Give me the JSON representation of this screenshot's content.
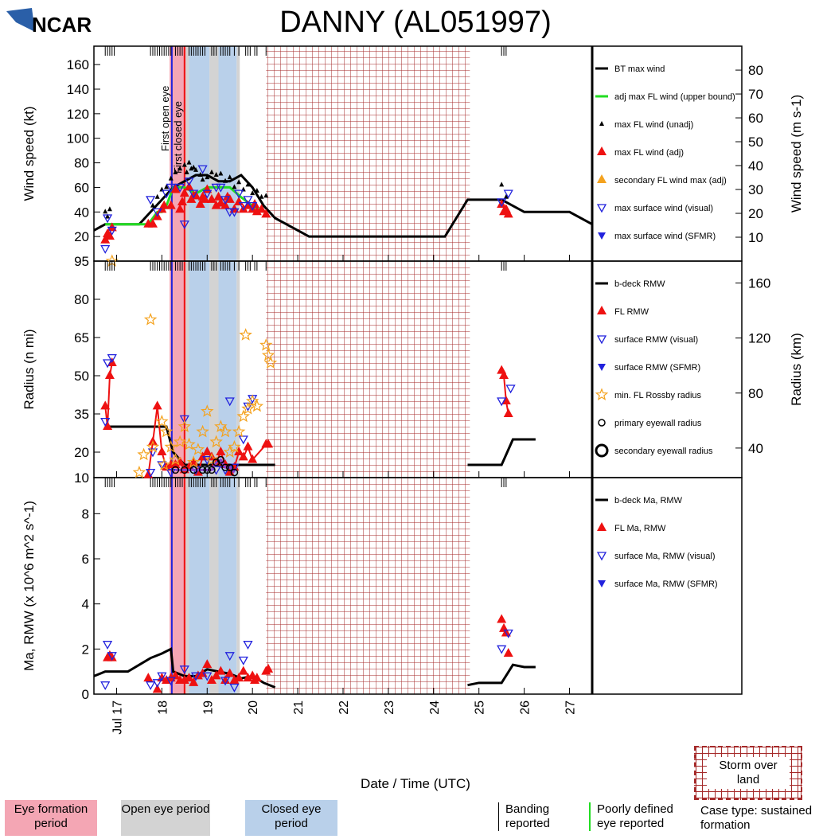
{
  "logo_text": "NCAR",
  "title": "DANNY (AL051997)",
  "xlabel": "Date / Time (UTC)",
  "x_ticks": [
    "Jul 17",
    "18",
    "19",
    "20",
    "21",
    "22",
    "23",
    "24",
    "25",
    "26",
    "27"
  ],
  "bottom_legend": {
    "eye_formation": "Eye formation period",
    "open_eye": "Open eye period",
    "closed_eye": "Closed eye period",
    "banding": "Banding reported",
    "poorly_defined": "Poorly defined eye reported",
    "storm_over_land": "Storm over land",
    "case_type": "Case type: sustained formation"
  },
  "annotations": {
    "first_open_eye": "First open eye",
    "first_closed_eye": "First closed eye"
  },
  "colors": {
    "eye_formation": "#f4a6b4",
    "open_eye": "#d3d3d3",
    "closed_eye": "#b9d0ea",
    "land_hatch": "#a52a2a",
    "bt": "#000000",
    "adj_fl": "#22dd22",
    "fl": "#ee1111",
    "visual": "#2222dd",
    "rossby": "#f4a21e",
    "eyewall": "#8844cc"
  },
  "shading": {
    "eye_formation_days": [
      [
        18.17,
        18.53
      ]
    ],
    "open_eye_days": [
      [
        18.53,
        18.6
      ],
      [
        19.05,
        19.25
      ],
      [
        19.65,
        19.72
      ]
    ],
    "closed_eye_days": [
      [
        18.6,
        19.05
      ],
      [
        19.25,
        19.65
      ]
    ],
    "land_days": [
      20.3,
      24.8
    ],
    "first_open_eye_day": 18.22,
    "first_closed_eye_day": 18.5,
    "banding_days": [
      16.75,
      16.8,
      16.85,
      16.9,
      16.95,
      17.75,
      17.8,
      17.85,
      17.9,
      17.95,
      18.0,
      18.05,
      18.1,
      18.15,
      18.2,
      18.3,
      18.35,
      18.4,
      18.45,
      18.6,
      18.65,
      18.7,
      18.75,
      18.8,
      18.85,
      18.9,
      18.95,
      19.1,
      19.15,
      19.2,
      19.3,
      19.35,
      19.4,
      19.45,
      19.5,
      19.6,
      19.7,
      19.85,
      19.9,
      19.95,
      20.05,
      20.1,
      20.3,
      25.5,
      25.55,
      25.6
    ],
    "x_range_days": [
      16.5,
      27.5
    ]
  },
  "chart_data": [
    {
      "type": "line",
      "panel": "wind",
      "ylabel": "Wind speed (kt)",
      "ylabel_right": "Wind speed (m s-1)",
      "ylim": [
        0,
        175
      ],
      "y_ticks": [
        20,
        40,
        60,
        80,
        100,
        120,
        140,
        160
      ],
      "y_ticks_right": [
        10,
        20,
        30,
        40,
        50,
        60,
        70,
        80
      ],
      "legend": [
        "BT max wind",
        "adj max FL wind (upper bound)",
        "max FL wind (unadj)",
        "max FL wind (adj)",
        "secondary FL wind max (adj)",
        "max surface wind (visual)",
        "max surface wind (SFMR)"
      ],
      "series": [
        {
          "name": "BT max wind",
          "x": [
            16.5,
            16.75,
            17.0,
            17.25,
            17.5,
            17.75,
            18.0,
            18.25,
            18.5,
            18.75,
            19.0,
            19.25,
            19.5,
            19.75,
            20.0,
            20.25,
            20.5,
            20.75,
            21.0,
            21.25,
            21.5,
            22.0,
            22.5,
            23.0,
            23.5,
            24.0,
            24.25,
            24.5,
            24.75,
            25.0,
            25.25,
            25.5,
            25.75,
            26.0,
            26.5,
            27.0,
            27.5
          ],
          "y": [
            25,
            30,
            30,
            30,
            30,
            40,
            50,
            60,
            65,
            70,
            70,
            65,
            65,
            70,
            60,
            45,
            35,
            30,
            25,
            20,
            20,
            20,
            20,
            20,
            20,
            20,
            20,
            35,
            50,
            50,
            50,
            50,
            45,
            40,
            40,
            40,
            30
          ]
        },
        {
          "name": "adj max FL wind (upper bound)",
          "x": [
            16.75,
            17.0,
            17.25,
            17.5,
            17.7,
            17.9,
            18.0,
            18.1,
            18.25,
            18.5,
            18.75,
            19.0,
            19.25,
            19.5,
            19.75,
            20.0,
            20.25
          ],
          "y": [
            30,
            30,
            30,
            30,
            30,
            40,
            40,
            45,
            60,
            60,
            55,
            60,
            60,
            60,
            52,
            45,
            40
          ]
        },
        {
          "name": "max FL wind (unadj)",
          "x": [
            16.75,
            16.8,
            16.85,
            17.8,
            17.9,
            18.0,
            18.1,
            18.2,
            18.3,
            18.4,
            18.5,
            18.55,
            18.6,
            18.65,
            18.7,
            18.75,
            18.85,
            18.9,
            19.0,
            19.1,
            19.2,
            19.3,
            19.4,
            19.5,
            19.6,
            19.7,
            19.8,
            19.9,
            20.0,
            20.1,
            20.2,
            20.3,
            25.5,
            25.6
          ],
          "y": [
            40,
            36,
            42,
            45,
            52,
            58,
            60,
            67,
            72,
            75,
            78,
            72,
            80,
            75,
            76,
            74,
            70,
            66,
            68,
            72,
            70,
            71,
            65,
            68,
            60,
            64,
            58,
            62,
            55,
            57,
            52,
            53,
            62,
            52
          ]
        },
        {
          "name": "max FL wind (adj)",
          "x": [
            16.75,
            16.8,
            16.85,
            16.9,
            17.7,
            17.8,
            17.9,
            18.0,
            18.05,
            18.2,
            18.3,
            18.4,
            18.45,
            18.5,
            18.6,
            18.65,
            18.7,
            18.75,
            18.85,
            18.9,
            18.95,
            19.0,
            19.1,
            19.2,
            19.25,
            19.3,
            19.4,
            19.45,
            19.5,
            19.6,
            19.7,
            19.8,
            19.9,
            20.0,
            20.05,
            20.1,
            20.2,
            20.3,
            25.5,
            25.55,
            25.6,
            25.65
          ],
          "y": [
            17,
            22,
            20,
            27,
            30,
            30,
            36,
            42,
            45,
            45,
            58,
            42,
            48,
            55,
            60,
            50,
            53,
            53,
            46,
            52,
            50,
            58,
            50,
            45,
            52,
            47,
            45,
            52,
            50,
            42,
            48,
            42,
            45,
            42,
            46,
            40,
            42,
            38,
            46,
            40,
            42,
            38
          ]
        },
        {
          "name": "max surface wind (visual)",
          "x": [
            16.75,
            16.8,
            16.9,
            17.75,
            17.9,
            18.1,
            18.2,
            18.4,
            18.5,
            18.6,
            18.7,
            18.9,
            19.0,
            19.2,
            19.3,
            19.4,
            19.5,
            19.6,
            19.7,
            19.8,
            19.9,
            20.0,
            25.5,
            25.65
          ],
          "y": [
            10,
            35,
            25,
            50,
            40,
            55,
            60,
            60,
            30,
            65,
            55,
            75,
            55,
            60,
            60,
            50,
            40,
            40,
            55,
            45,
            50,
            45,
            48,
            55
          ]
        }
      ]
    },
    {
      "type": "line",
      "panel": "radius",
      "ylabel": "Radius (n mi)",
      "ylabel_right": "Radius (km)",
      "ylim": [
        10,
        95
      ],
      "y_ticks": [
        10,
        20,
        35,
        50,
        65,
        80,
        95
      ],
      "y_ticks_right": [
        40,
        80,
        120,
        160
      ],
      "legend": [
        "b-deck RMW",
        "FL RMW",
        "surface RMW (visual)",
        "surface RMW (SFMR)",
        "min. FL Rossby radius",
        "primary eyewall radius",
        "secondary eyewall radius"
      ],
      "series": [
        {
          "name": "b-deck RMW",
          "x": [
            16.75,
            17.0,
            17.5,
            18.0,
            18.1,
            18.25,
            18.5,
            19.0,
            19.5,
            20.0,
            20.25,
            20.5
          ],
          "y": [
            30,
            30,
            30,
            30,
            30,
            20,
            15,
            15,
            15,
            15,
            15,
            15
          ]
        },
        {
          "name": "b-deck RMW",
          "x": [
            24.75,
            25.0,
            25.25,
            25.5,
            25.75,
            26.0,
            26.25
          ],
          "y": [
            15,
            15,
            15,
            15,
            25,
            25,
            25
          ]
        },
        {
          "name": "FL RMW",
          "x": [
            16.75,
            16.8,
            16.85,
            16.9,
            17.7,
            17.8,
            17.9,
            18.0,
            18.1,
            18.2,
            18.3,
            18.4,
            18.5,
            18.6,
            18.7,
            18.8,
            18.9,
            19.0,
            19.1,
            19.2,
            19.3,
            19.4,
            19.5,
            19.6,
            19.7,
            19.8,
            19.9,
            20.0,
            20.3,
            20.35,
            25.5,
            25.55,
            25.6,
            25.65
          ],
          "y": [
            38,
            30,
            50,
            55,
            11,
            24,
            38,
            20,
            14,
            15,
            15,
            16,
            13,
            14,
            16,
            12,
            18,
            20,
            18,
            16,
            20,
            15,
            12,
            14,
            20,
            18,
            22,
            17,
            23,
            23,
            52,
            50,
            40,
            35
          ]
        },
        {
          "name": "surface RMW (visual)",
          "x": [
            16.75,
            16.8,
            16.9,
            17.75,
            17.8,
            18.0,
            18.2,
            18.5,
            18.75,
            19.0,
            19.2,
            19.4,
            19.5,
            19.6,
            19.8,
            19.9,
            20.0,
            25.5,
            25.7
          ],
          "y": [
            32,
            55,
            57,
            12,
            20,
            15,
            12,
            33,
            13,
            17,
            13,
            13,
            40,
            14,
            25,
            38,
            41,
            40,
            45
          ]
        },
        {
          "name": "min. FL Rossby radius",
          "x": [
            16.9,
            17.5,
            17.6,
            17.75,
            17.8,
            18.0,
            18.05,
            18.1,
            18.2,
            18.3,
            18.4,
            18.5,
            18.6,
            18.7,
            18.8,
            18.9,
            19.0,
            19.1,
            19.2,
            19.3,
            19.4,
            19.5,
            19.6,
            19.7,
            19.8,
            19.85,
            19.9,
            20.0,
            20.1,
            20.3,
            20.35,
            20.4
          ],
          "y": [
            95,
            12,
            19,
            72,
            22,
            32,
            15,
            28,
            22,
            17,
            24,
            30,
            23,
            16,
            21,
            28,
            36,
            17,
            24,
            30,
            28,
            20,
            22,
            28,
            34,
            66,
            37,
            40,
            38,
            62,
            58,
            55
          ]
        },
        {
          "name": "primary eyewall radius",
          "x": [
            18.3,
            18.5,
            18.7,
            18.9,
            19.0,
            19.1,
            19.2,
            19.3,
            19.4,
            19.5,
            19.6
          ],
          "y": [
            13,
            13,
            13,
            13,
            13,
            13,
            16,
            17,
            14,
            14,
            12
          ]
        }
      ]
    },
    {
      "type": "line",
      "panel": "momentum",
      "ylabel": "Ma, RMW (x 10^6 m^2 s^-1)",
      "ylim": [
        0,
        9.6
      ],
      "y_ticks": [
        0,
        2,
        4,
        6,
        8
      ],
      "legend": [
        "b-deck Ma, RMW",
        "FL Ma, RMW",
        "surface Ma, RMW (visual)",
        "surface Ma, RMW (SFMR)"
      ],
      "series": [
        {
          "name": "b-deck Ma, RMW",
          "x": [
            16.5,
            16.75,
            17.0,
            17.25,
            17.5,
            17.75,
            18.0,
            18.2,
            18.25,
            18.5,
            18.75,
            19.0,
            19.25,
            19.5,
            19.75,
            20.0,
            20.25,
            20.5
          ],
          "y": [
            0.8,
            1.0,
            1.0,
            1.0,
            1.3,
            1.6,
            1.8,
            2.0,
            1.0,
            0.8,
            0.8,
            1.1,
            1.0,
            0.9,
            0.7,
            0.8,
            0.5,
            0.3
          ]
        },
        {
          "name": "b-deck Ma, RMW",
          "x": [
            24.75,
            25.0,
            25.25,
            25.5,
            25.75,
            26.0,
            26.25
          ],
          "y": [
            0.4,
            0.5,
            0.5,
            0.5,
            1.3,
            1.2,
            1.2
          ]
        },
        {
          "name": "FL Ma, RMW",
          "x": [
            16.8,
            16.85,
            16.9,
            17.7,
            17.9,
            18.0,
            18.1,
            18.2,
            18.3,
            18.4,
            18.5,
            18.6,
            18.7,
            18.8,
            18.9,
            19.0,
            19.1,
            19.2,
            19.3,
            19.4,
            19.5,
            19.6,
            19.7,
            19.8,
            19.9,
            20.0,
            20.05,
            20.1,
            20.3,
            20.35,
            25.5,
            25.55,
            25.6,
            25.65
          ],
          "y": [
            1.6,
            1.7,
            1.6,
            0.7,
            0.2,
            0.7,
            0.6,
            0.7,
            0.8,
            0.6,
            0.6,
            0.7,
            0.5,
            0.8,
            0.9,
            1.3,
            0.6,
            0.8,
            1.0,
            0.6,
            0.9,
            0.6,
            0.7,
            1.0,
            0.7,
            0.8,
            0.6,
            0.7,
            1.0,
            1.1,
            3.3,
            2.9,
            2.7,
            1.8
          ]
        },
        {
          "name": "surface Ma, RMW (visual)",
          "x": [
            16.75,
            16.8,
            16.9,
            17.75,
            17.9,
            18.0,
            18.2,
            18.5,
            18.75,
            19.0,
            19.4,
            19.5,
            19.6,
            19.8,
            19.9,
            25.5,
            25.65
          ],
          "y": [
            0.4,
            2.2,
            1.7,
            0.4,
            0.5,
            0.8,
            0.6,
            1.1,
            0.8,
            0.8,
            0.6,
            1.7,
            0.3,
            1.5,
            2.2,
            2.0,
            2.7
          ]
        }
      ]
    }
  ]
}
